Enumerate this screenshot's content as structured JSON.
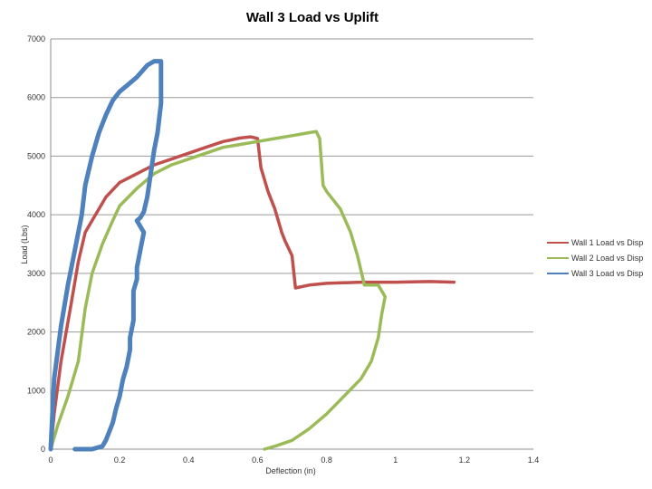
{
  "chart_data": {
    "type": "line",
    "title": "Wall 3 Load vs Uplift",
    "xlabel": "Deflection (in)",
    "ylabel": "Load (Lbs)",
    "xlim": [
      0,
      1.4
    ],
    "ylim": [
      0,
      7000
    ],
    "x_ticks": [
      "0",
      "0.2",
      "0.4",
      "0.6",
      "0.8",
      "1",
      "1.2",
      "1.4"
    ],
    "y_ticks": [
      "0",
      "1000",
      "2000",
      "3000",
      "4000",
      "5000",
      "6000",
      "7000"
    ],
    "grid": true,
    "legend_position": "right",
    "series": [
      {
        "name": "Wall 1 Load vs Disp",
        "color": "#c0504d",
        "x": [
          0.0,
          0.01,
          0.03,
          0.06,
          0.08,
          0.1,
          0.13,
          0.16,
          0.2,
          0.25,
          0.3,
          0.35,
          0.4,
          0.45,
          0.5,
          0.55,
          0.58,
          0.6,
          0.61,
          0.63,
          0.65,
          0.66,
          0.67,
          0.68,
          0.7,
          0.71,
          0.75,
          0.8,
          0.9,
          1.0,
          1.1,
          1.17
        ],
        "y": [
          0,
          600,
          1500,
          2500,
          3200,
          3700,
          4000,
          4300,
          4550,
          4700,
          4850,
          4950,
          5050,
          5150,
          5250,
          5310,
          5330,
          5300,
          4800,
          4400,
          4100,
          3900,
          3700,
          3550,
          3300,
          2750,
          2800,
          2830,
          2850,
          2850,
          2860,
          2850
        ]
      },
      {
        "name": "Wall 2 Load vs Disp",
        "color": "#9bbb59",
        "x": [
          0.0,
          0.02,
          0.05,
          0.08,
          0.1,
          0.12,
          0.15,
          0.18,
          0.2,
          0.25,
          0.3,
          0.35,
          0.4,
          0.45,
          0.5,
          0.55,
          0.6,
          0.65,
          0.7,
          0.75,
          0.77,
          0.78,
          0.79,
          0.8,
          0.84,
          0.87,
          0.89,
          0.91,
          0.95,
          0.97,
          0.96,
          0.95,
          0.93,
          0.9,
          0.85,
          0.8,
          0.75,
          0.7,
          0.65,
          0.62
        ],
        "y": [
          0,
          400,
          900,
          1500,
          2400,
          3000,
          3500,
          3900,
          4150,
          4450,
          4700,
          4850,
          4950,
          5050,
          5150,
          5200,
          5250,
          5300,
          5350,
          5400,
          5420,
          5300,
          4500,
          4400,
          4100,
          3700,
          3300,
          2800,
          2800,
          2600,
          2300,
          1900,
          1500,
          1200,
          900,
          600,
          350,
          150,
          50,
          0
        ]
      },
      {
        "name": "Wall 3 Load vs Disp",
        "color": "#4f81bd",
        "x": [
          0.0,
          0.01,
          0.03,
          0.05,
          0.07,
          0.09,
          0.1,
          0.12,
          0.14,
          0.16,
          0.18,
          0.2,
          0.22,
          0.25,
          0.28,
          0.3,
          0.32,
          0.32,
          0.31,
          0.3,
          0.29,
          0.28,
          0.27,
          0.26,
          0.25,
          0.27,
          0.26,
          0.25,
          0.25,
          0.24,
          0.24,
          0.23,
          0.23,
          0.22,
          0.21,
          0.2,
          0.19,
          0.18,
          0.17,
          0.16,
          0.15,
          0.12,
          0.09,
          0.07
        ],
        "y": [
          0,
          1200,
          2100,
          2800,
          3400,
          4000,
          4500,
          5000,
          5400,
          5700,
          5950,
          6100,
          6200,
          6350,
          6550,
          6620,
          6620,
          5900,
          5400,
          5100,
          4700,
          4300,
          4050,
          3950,
          3900,
          3700,
          3400,
          3100,
          2900,
          2700,
          2200,
          1900,
          1700,
          1400,
          1200,
          900,
          700,
          450,
          300,
          150,
          50,
          0,
          0,
          0
        ]
      }
    ]
  }
}
